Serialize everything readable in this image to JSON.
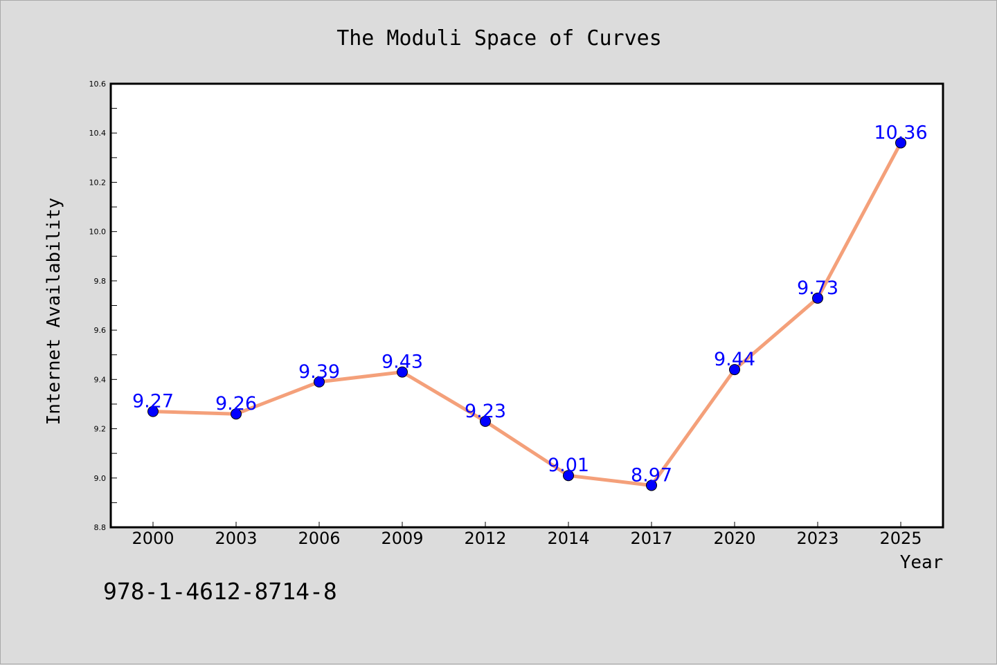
{
  "chart_data": {
    "type": "line",
    "title": "The Moduli Space of Curves",
    "xlabel": "Year",
    "ylabel": "Internet Availability",
    "categories": [
      "2000",
      "2003",
      "2006",
      "2009",
      "2012",
      "2014",
      "2017",
      "2020",
      "2023",
      "2025"
    ],
    "series": [
      {
        "values": [
          9.27,
          9.26,
          9.39,
          9.43,
          9.23,
          9.01,
          8.97,
          9.44,
          9.73,
          10.36
        ],
        "labels": [
          "9.27",
          "9.26",
          "9.39",
          "9.43",
          "9.23",
          "9.01",
          "8.97",
          "9.44",
          "9.73",
          "10.36"
        ]
      }
    ],
    "ylim": [
      8.8,
      10.6
    ],
    "yticks": [
      "8.8",
      "9.0",
      "9.2",
      "9.4",
      "9.6",
      "9.8",
      "10.0",
      "10.2",
      "10.4",
      "10.6"
    ],
    "grid": false,
    "data_labels": true,
    "colors": {
      "line": "#f4a07a",
      "marker": "#0000ff",
      "data_label": "#0000ff",
      "plot_background": "#ffffff",
      "figure_background": "#dcdcdc"
    }
  },
  "footnote": "978-1-4612-8714-8"
}
